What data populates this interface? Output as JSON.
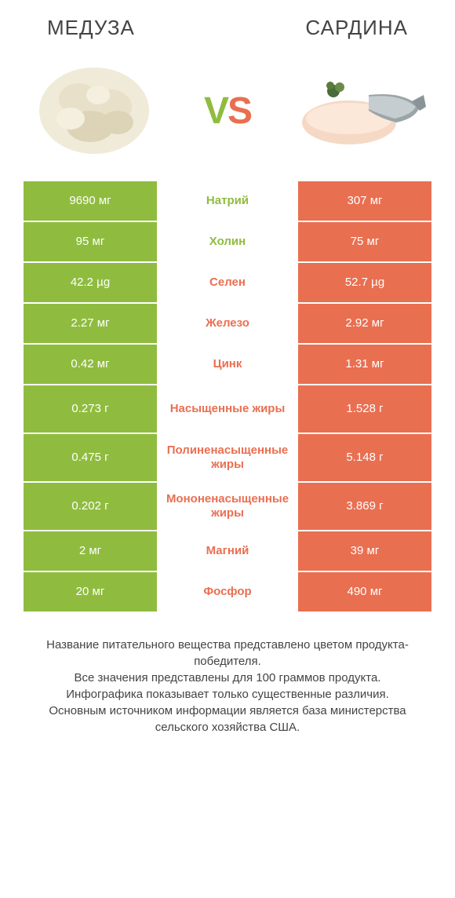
{
  "palette": {
    "green": "#8fbc3f",
    "orange": "#e96f51",
    "white": "#ffffff",
    "text": "#333333"
  },
  "header": {
    "left_title": "Медуза",
    "right_title": "Сардина"
  },
  "vs": {
    "v": "V",
    "s": "S"
  },
  "rows": [
    {
      "left": "9690 мг",
      "label": "Натрий",
      "right": "307 мг",
      "winner": "left",
      "tall": false
    },
    {
      "left": "95 мг",
      "label": "Холин",
      "right": "75 мг",
      "winner": "left",
      "tall": false
    },
    {
      "left": "42.2 µg",
      "label": "Селен",
      "right": "52.7 µg",
      "winner": "right",
      "tall": false
    },
    {
      "left": "2.27 мг",
      "label": "Железо",
      "right": "2.92 мг",
      "winner": "right",
      "tall": false
    },
    {
      "left": "0.42 мг",
      "label": "Цинк",
      "right": "1.31 мг",
      "winner": "right",
      "tall": false
    },
    {
      "left": "0.273 г",
      "label": "Насыщенные жиры",
      "right": "1.528 г",
      "winner": "right",
      "tall": true
    },
    {
      "left": "0.475 г",
      "label": "Полиненасыщенные жиры",
      "right": "5.148 г",
      "winner": "right",
      "tall": true
    },
    {
      "left": "0.202 г",
      "label": "Мононенасыщенные жиры",
      "right": "3.869 г",
      "winner": "right",
      "tall": true
    },
    {
      "left": "2 мг",
      "label": "Магний",
      "right": "39 мг",
      "winner": "right",
      "tall": false
    },
    {
      "left": "20 мг",
      "label": "Фосфор",
      "right": "490 мг",
      "winner": "right",
      "tall": false
    }
  ],
  "footer": {
    "line1": "Название питательного вещества представлено цветом продукта-победителя.",
    "line2": "Все значения представлены для 100 граммов продукта.",
    "line3": "Инфографика показывает только существенные различия.",
    "line4": "Основным источником информации является база министерства сельского хозяйства США."
  }
}
